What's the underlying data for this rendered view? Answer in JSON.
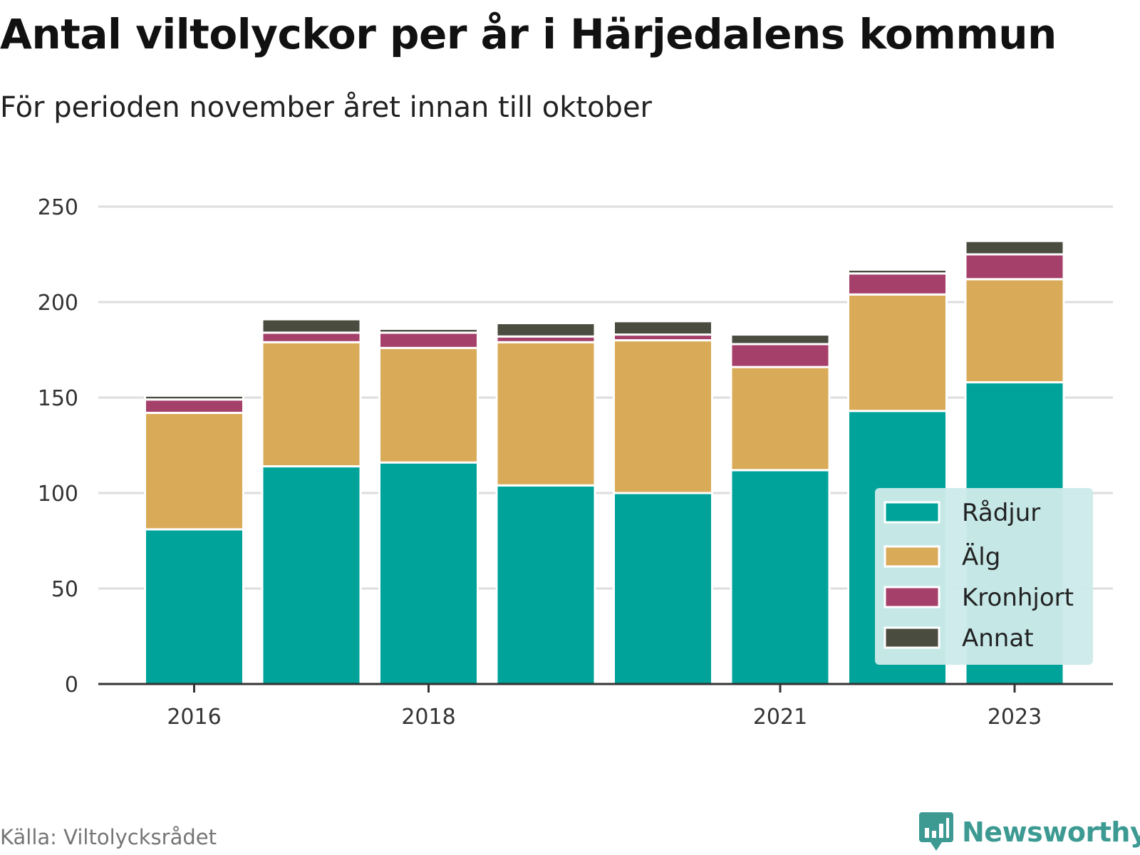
{
  "header": {
    "title": "Antal viltolyckor per år i Härjedalens kommun",
    "subtitle": "För perioden november året innan till oktober"
  },
  "footer": {
    "source": "Källa: Viltolycksrådet",
    "brand": "Newsworthy",
    "brand_icon": "chart-logo-icon"
  },
  "colors": {
    "radjur": "#00a39a",
    "alg": "#d9ab58",
    "kronhjort": "#a5406a",
    "annat": "#4a4c3f",
    "grid": "#dddddd",
    "legend_bg": "#cdeaea",
    "brand": "#3c9a93"
  },
  "chart_data": {
    "type": "bar",
    "stacked": true,
    "categories": [
      "2016",
      "2017",
      "2018",
      "2019",
      "2020",
      "2021",
      "2022",
      "2023"
    ],
    "x_tick_labels": [
      "2016",
      "2018",
      "2021",
      "2023"
    ],
    "series": [
      {
        "name": "Rådjur",
        "color": "#00a39a",
        "values": [
          81,
          114,
          116,
          104,
          100,
          112,
          143,
          158
        ]
      },
      {
        "name": "Älg",
        "color": "#d9ab58",
        "values": [
          61,
          65,
          60,
          75,
          80,
          54,
          61,
          54
        ]
      },
      {
        "name": "Kronhjort",
        "color": "#a5406a",
        "values": [
          7,
          5,
          8,
          3,
          3,
          12,
          11,
          13
        ]
      },
      {
        "name": "Annat",
        "color": "#4a4c3f",
        "values": [
          2,
          7,
          2,
          7,
          7,
          5,
          2,
          7
        ]
      }
    ],
    "ylim": [
      0,
      250
    ],
    "y_ticks": [
      0,
      50,
      100,
      150,
      200,
      250
    ],
    "grid": true,
    "legend_position": "bottom-right"
  }
}
